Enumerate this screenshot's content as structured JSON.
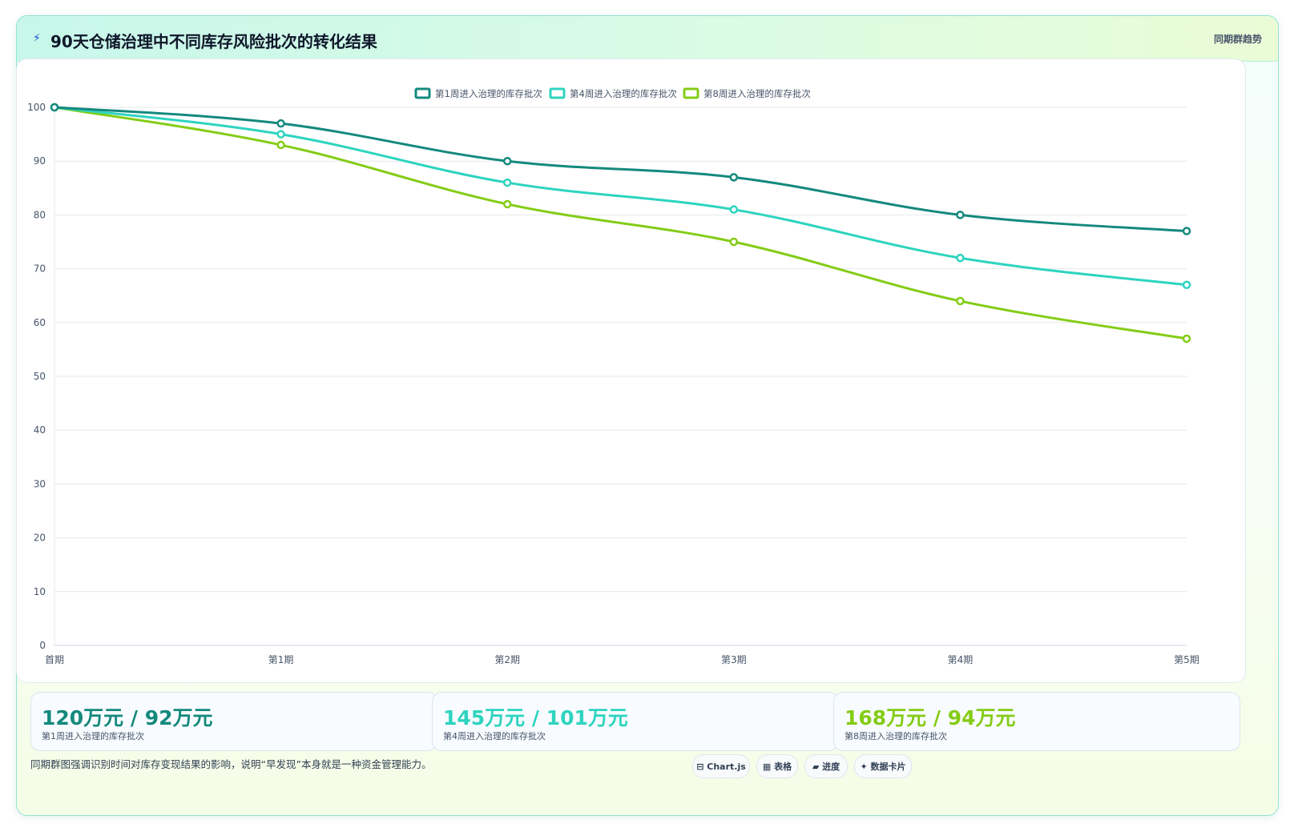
{
  "header": {
    "icon": "lightning-icon",
    "title": "90天仓储治理中不同库存风险批次的转化结果",
    "tag": "同期群趋势"
  },
  "chart_data": {
    "type": "line",
    "title": "",
    "xlabel": "",
    "ylabel": "",
    "ylim": [
      0,
      100
    ],
    "yticks": [
      0,
      10,
      20,
      30,
      40,
      50,
      60,
      70,
      80,
      90,
      100
    ],
    "grid": true,
    "legend_position": "top-center",
    "categories": [
      "首期",
      "第1期",
      "第2期",
      "第3期",
      "第4期",
      "第5期"
    ],
    "series": [
      {
        "name": "第1周进入治理的库存批次",
        "color": "#14897d",
        "values": [
          100,
          97,
          90,
          87,
          80,
          77
        ]
      },
      {
        "name": "第4周进入治理的库存批次",
        "color": "#2dd4bf",
        "values": [
          100,
          95,
          86,
          81,
          72,
          67
        ]
      },
      {
        "name": "第8周进入治理的库存批次",
        "color": "#84cc16",
        "values": [
          100,
          93,
          82,
          75,
          64,
          57
        ]
      }
    ]
  },
  "kpis": [
    {
      "value": "120万元 / 92万元",
      "label": "第1周进入治理的库存批次",
      "color": "#14897d"
    },
    {
      "value": "145万元 / 101万元",
      "label": "第4周进入治理的库存批次",
      "color": "#2dd4bf"
    },
    {
      "value": "168万元 / 94万元",
      "label": "第8周进入治理的库存批次",
      "color": "#84cc16"
    }
  ],
  "footer": {
    "note": "同期群图强调识别时间对库存变现结果的影响，说明“早发现”本身就是一种资金管理能力。",
    "chips": [
      {
        "label": "⊟ Chart.js",
        "icon": "chart-icon"
      },
      {
        "label": "▦ 表格",
        "icon": "table-icon"
      },
      {
        "label": "▰ 进度",
        "icon": "progress-icon"
      },
      {
        "label": "✦ 数据卡片",
        "icon": "sparkle-icon"
      }
    ]
  }
}
